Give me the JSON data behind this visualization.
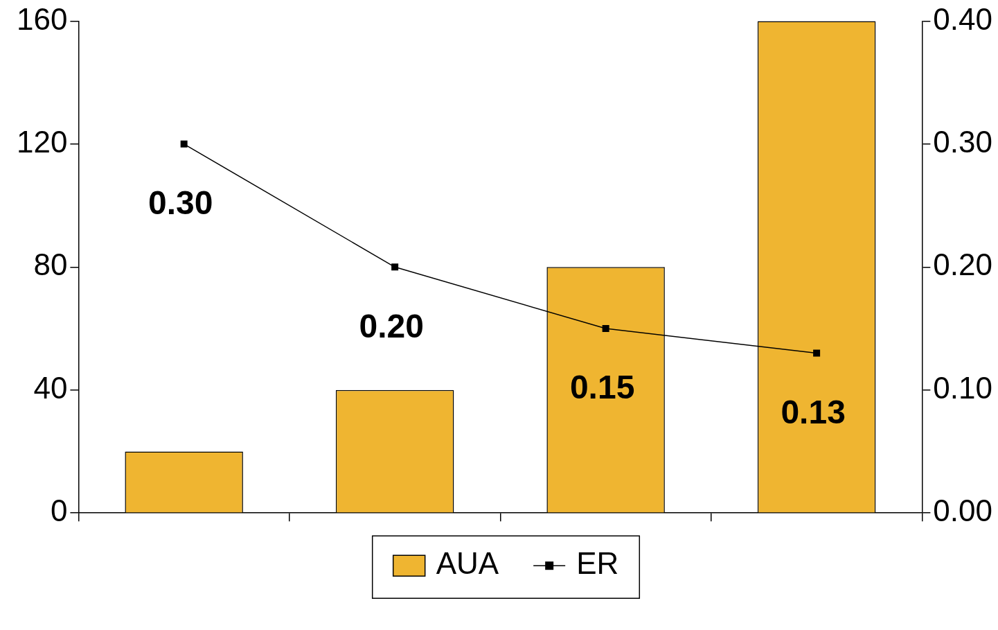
{
  "chart_data": {
    "type": "bar",
    "categories": [
      null,
      null,
      null,
      null
    ],
    "series": [
      {
        "name": "AUA",
        "color": "#efb531",
        "values": [
          20,
          40,
          80,
          160
        ]
      },
      {
        "name": "ER",
        "type": "line",
        "axis": "y2",
        "color": "#000000",
        "values": [
          0.3,
          0.2,
          0.15,
          0.13
        ],
        "value_labels": [
          "0.30",
          "0.20",
          "0.15",
          "0.13"
        ]
      }
    ],
    "ylim": [
      0,
      160
    ],
    "yticks": [
      0,
      40,
      80,
      120,
      160
    ],
    "y2lim": [
      0,
      0.4
    ],
    "y2ticks": [
      {
        "value": 0,
        "label": "0.00"
      },
      {
        "value": 0.1,
        "label": "0.10"
      },
      {
        "value": 0.2,
        "label": "0.20"
      },
      {
        "value": 0.3,
        "label": "0.30"
      },
      {
        "value": 0.4,
        "label": "0.40"
      }
    ],
    "grid": false,
    "legend": "bottom",
    "marker": "square",
    "line_style": "solid"
  }
}
